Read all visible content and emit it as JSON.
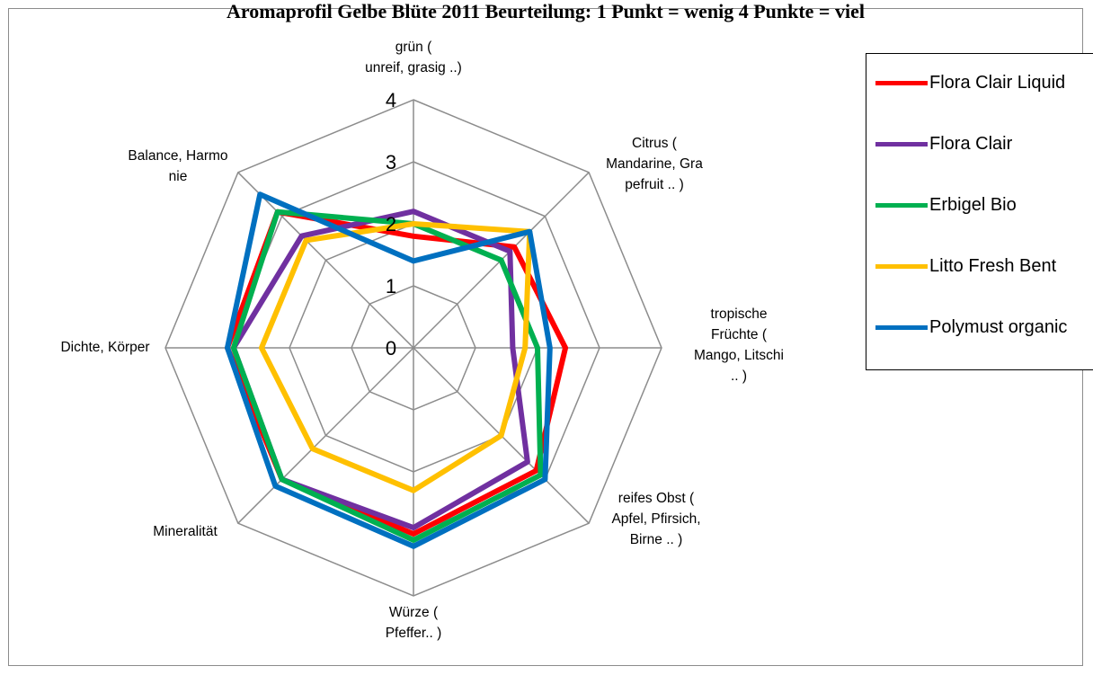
{
  "title": "Aromaprofil Gelbe Blüte 2011 Beurteilung: 1 Punkt = wenig 4 Punkte = viel",
  "chart_data": {
    "type": "radar",
    "rmax": 4,
    "ticks": [
      "0",
      "1",
      "2",
      "3",
      "4"
    ],
    "categories": [
      [
        "grün (",
        "unreif, grasig ..)"
      ],
      [
        "Citrus (",
        "Mandarine, Gra",
        "pefruit .. )"
      ],
      [
        "tropische",
        "Früchte (",
        "Mango, Litschi",
        ".. )"
      ],
      [
        "reifes Obst (",
        "Apfel, Pfirsich,",
        "Birne .. )"
      ],
      [
        "Würze (",
        "Pfeffer.. )"
      ],
      [
        "Mineralität"
      ],
      [
        "Dichte, Körper"
      ],
      [
        "Balance, Harmo",
        "nie"
      ]
    ],
    "series": [
      {
        "name": "Flora Clair Liquid",
        "color": "#ff0000",
        "values": [
          1.8,
          2.3,
          2.45,
          2.8,
          3.0,
          3.0,
          3.0,
          3.1
        ]
      },
      {
        "name": "Flora Clair",
        "color": "#7030a0",
        "values": [
          2.2,
          2.2,
          1.6,
          2.6,
          2.9,
          3.0,
          2.9,
          2.55
        ]
      },
      {
        "name": "Erbigel Bio",
        "color": "#00b050",
        "values": [
          2.0,
          2.0,
          2.0,
          2.9,
          3.1,
          3.0,
          2.9,
          3.1
        ]
      },
      {
        "name": "Litto Fresh Bent",
        "color": "#ffc000",
        "values": [
          2.0,
          2.65,
          1.8,
          2.0,
          2.3,
          2.3,
          2.45,
          2.45
        ]
      },
      {
        "name": "Polymust organic",
        "color": "#0070c0",
        "values": [
          1.4,
          2.65,
          2.2,
          3.0,
          3.2,
          3.15,
          3.0,
          3.5
        ]
      }
    ]
  }
}
